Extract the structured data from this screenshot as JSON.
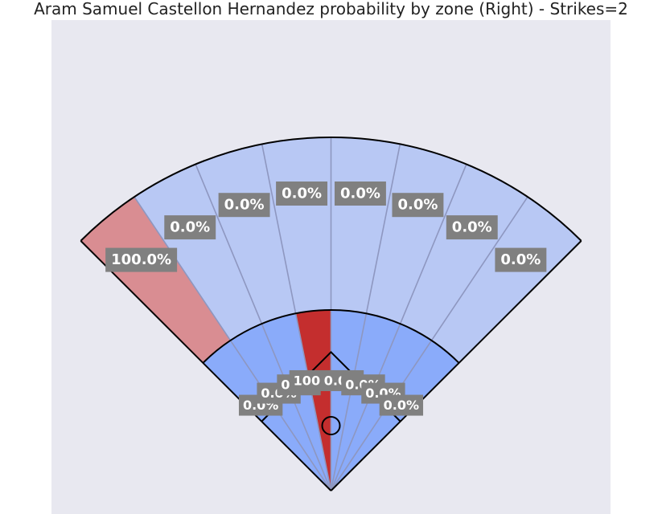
{
  "title": "Aram Samuel Castellon Hernandez probability by zone (Right) - Strikes=2",
  "colors": {
    "background": "#e8e8f0",
    "outfield_zero": "#b8c8f4",
    "outfield_hot": "#d98d92",
    "infield_zero": "#8aabfa",
    "infield_hot": "#c42e2e",
    "divider": "#8e97c0",
    "label_box": "#808080",
    "label_text": "#ffffff",
    "outline": "#000000"
  },
  "chart_data": {
    "type": "spray-zone",
    "title": "Aram Samuel Castellon Hernandez probability by zone (Right) - Strikes=2",
    "unit": "%",
    "outfield_zones": [
      {
        "zone": 1,
        "value": 100.0,
        "label": "100.0%"
      },
      {
        "zone": 2,
        "value": 0.0,
        "label": "0.0%"
      },
      {
        "zone": 3,
        "value": 0.0,
        "label": "0.0%"
      },
      {
        "zone": 4,
        "value": 0.0,
        "label": "0.0%"
      },
      {
        "zone": 5,
        "value": 0.0,
        "label": "0.0%"
      },
      {
        "zone": 6,
        "value": 0.0,
        "label": "0.0%"
      },
      {
        "zone": 7,
        "value": 0.0,
        "label": "0.0%"
      },
      {
        "zone": 8,
        "value": 0.0,
        "label": "0.0%"
      }
    ],
    "infield_zones": [
      {
        "zone": 1,
        "value": 0.0,
        "label": "0.0%"
      },
      {
        "zone": 2,
        "value": 0.0,
        "label": "0.0%"
      },
      {
        "zone": 3,
        "value": 0.0,
        "label": "0.0%"
      },
      {
        "zone": 4,
        "value": 100.0,
        "label": "100.0%"
      },
      {
        "zone": 5,
        "value": 0.0,
        "label": "0.0%"
      },
      {
        "zone": 6,
        "value": 0.0,
        "label": "0.0%"
      },
      {
        "zone": 7,
        "value": 0.0,
        "label": "0.0%"
      },
      {
        "zone": 8,
        "value": 0.0,
        "label": "0.0%"
      }
    ]
  }
}
